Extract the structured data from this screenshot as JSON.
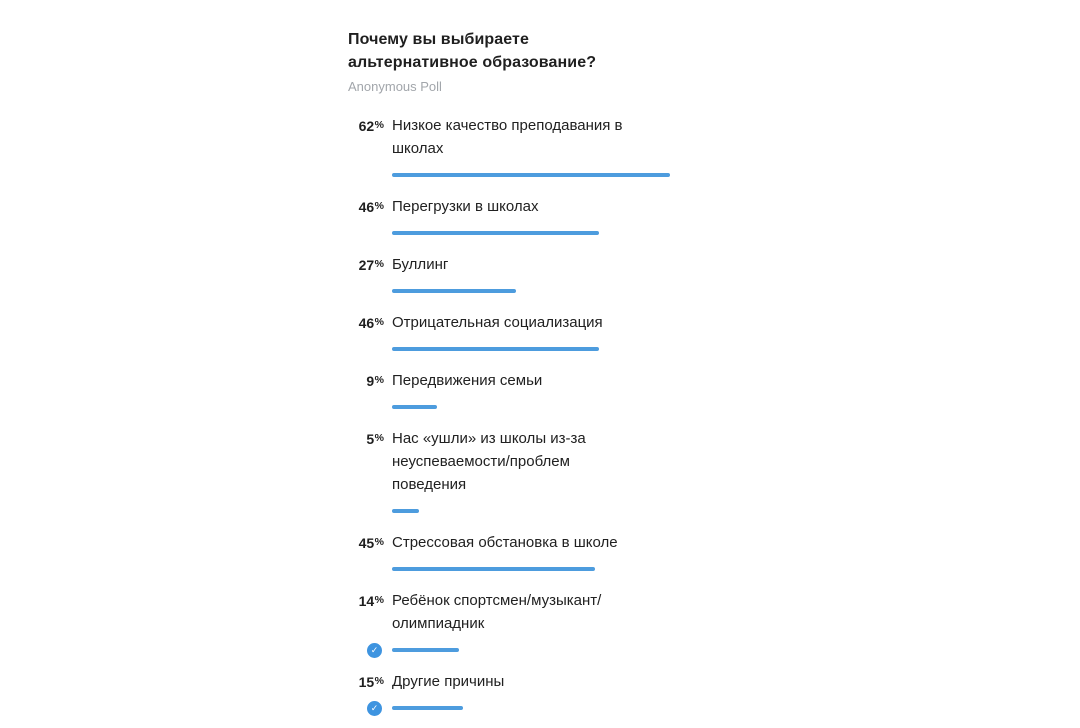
{
  "poll": {
    "question": "Почему вы выбираете альтернативное образование?",
    "type_label": "Anonymous Poll",
    "percent_sign": "%",
    "check_glyph": "✓",
    "colors": {
      "bar": "#4d9cde",
      "check_circle": "#3e94e0",
      "question_text": "#1f1f1f",
      "muted_text": "#a2a6ab"
    },
    "options": [
      {
        "percent": 62,
        "label": "Низкое качество преподавания в школах",
        "voted": false
      },
      {
        "percent": 46,
        "label": "Перегрузки в школах",
        "voted": false
      },
      {
        "percent": 27,
        "label": "Буллинг",
        "voted": false
      },
      {
        "percent": 46,
        "label": "Отрицательная социализация",
        "voted": false
      },
      {
        "percent": 9,
        "label": "Передвижения семьи",
        "voted": false
      },
      {
        "percent": 5,
        "label": "Нас «ушли» из школы из-за неуспеваемости/проблем поведения",
        "voted": false
      },
      {
        "percent": 45,
        "label": "Стрессовая обстановка в школе",
        "voted": false
      },
      {
        "percent": 14,
        "label": "Ребёнок спортсмен/музыкант/олимпиадник",
        "voted": true
      },
      {
        "percent": 15,
        "label": "Другие причины",
        "voted": true
      }
    ]
  }
}
